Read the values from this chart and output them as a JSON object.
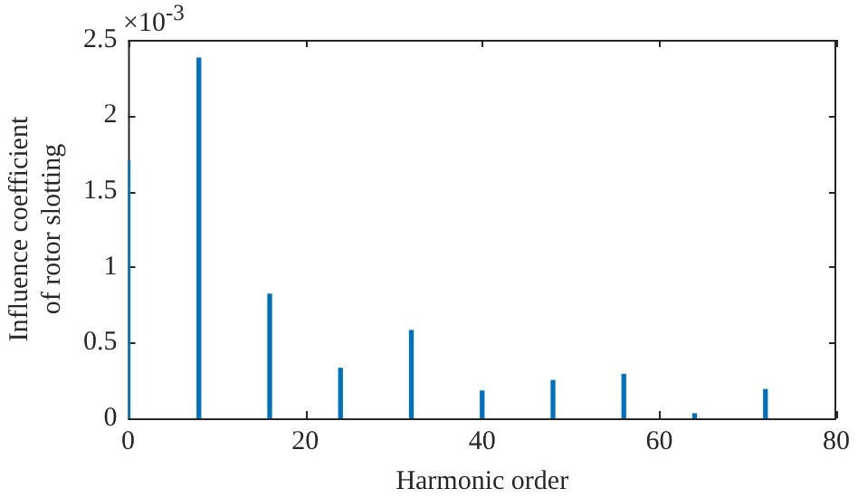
{
  "chart_data": {
    "type": "bar",
    "xlabel": "Harmonic order",
    "ylabel": "Influence coefficient of rotor slotting",
    "annotations": [
      "×10$^{-3}$"
    ],
    "x": [
      0,
      8,
      16,
      24,
      32,
      40,
      48,
      56,
      64,
      72
    ],
    "values": [
      1.7,
      2.38,
      0.82,
      0.33,
      0.58,
      0.18,
      0.25,
      0.29,
      0.03,
      0.19
    ],
    "color": "#0072bd",
    "xlim": [
      0,
      80
    ],
    "xticks": [
      0,
      20,
      40,
      60,
      80
    ],
    "ylim": [
      0,
      2.5
    ],
    "yticks": [
      0,
      0.5,
      1,
      1.5,
      2,
      2.5
    ],
    "grid": false,
    "legend": false
  }
}
